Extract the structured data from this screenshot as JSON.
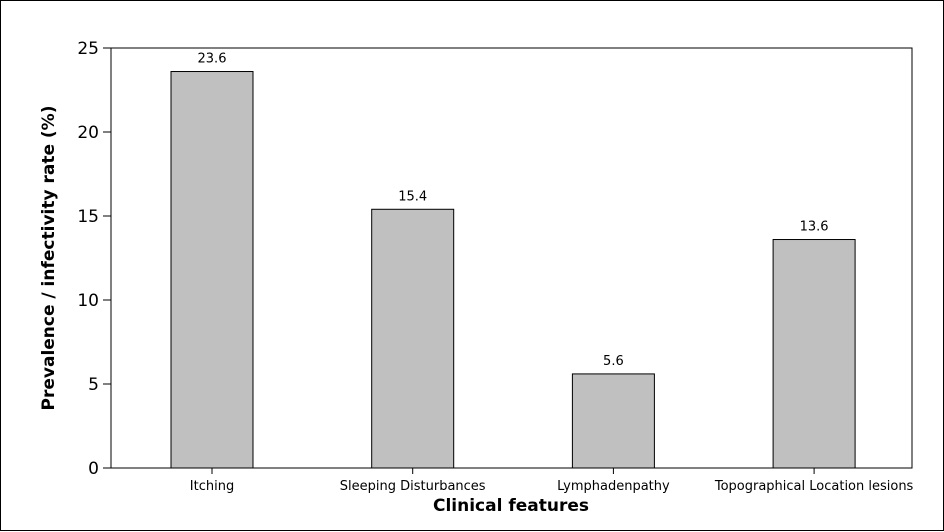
{
  "chart_data": {
    "type": "bar",
    "categories": [
      "Itching",
      "Sleeping Disturbances",
      "Lymphadenpathy",
      "Topographical Location lesions"
    ],
    "values": [
      23.6,
      15.4,
      5.6,
      13.6
    ],
    "data_labels": [
      "23.6",
      "15.4",
      "5.6",
      "13.6"
    ],
    "title": "",
    "xlabel": "Clinical features",
    "ylabel": "Prevalence / infectivity rate (%)",
    "ylim": [
      0,
      25
    ],
    "yticks": [
      "0",
      "5",
      "10",
      "15",
      "20",
      "25"
    ],
    "grid": false,
    "legend": "none",
    "bar_color": "#c0c0c0",
    "bar_edge_color": "#000000"
  }
}
